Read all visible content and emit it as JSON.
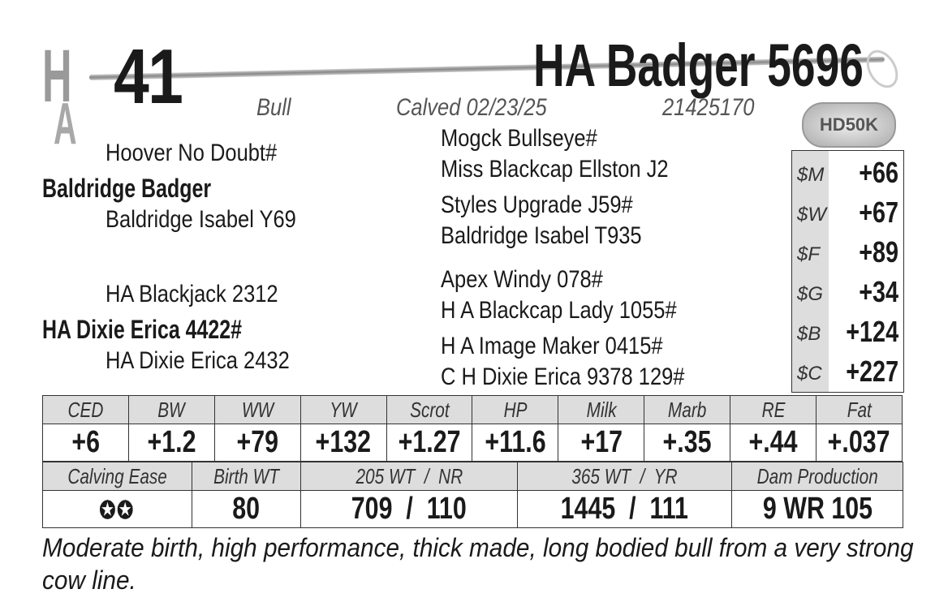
{
  "header": {
    "logo_text": "HA",
    "lot_number": "41",
    "animal_name": "HA Badger 5696",
    "sex": "Bull",
    "calved": "Calved 02/23/25",
    "registration": "21425170",
    "badge": "HD50K"
  },
  "pedigree": {
    "sire": "Baldridge Badger",
    "sire_sire": "Hoover No Doubt#",
    "sire_dam": "Baldridge Isabel Y69",
    "dam": "HA Dixie Erica 4422#",
    "dam_sire": "HA Blackjack 2312",
    "dam_dam": "HA Dixie Erica 2432",
    "great": [
      "Mogck Bullseye#",
      "Miss Blackcap Ellston J2",
      "Styles Upgrade J59#",
      "Baldridge Isabel T935",
      "Apex Windy 078#",
      "H A Blackcap Lady 1055#",
      "H A Image Maker 0415#",
      "C H Dixie Erica 9378 129#"
    ]
  },
  "indexes": [
    {
      "label": "$M",
      "value": "+66"
    },
    {
      "label": "$W",
      "value": "+67"
    },
    {
      "label": "$F",
      "value": "+89"
    },
    {
      "label": "$G",
      "value": "+34"
    },
    {
      "label": "$B",
      "value": "+124"
    },
    {
      "label": "$C",
      "value": "+227"
    }
  ],
  "epds": {
    "headers": [
      "CED",
      "BW",
      "WW",
      "YW",
      "Scrot",
      "HP",
      "Milk",
      "Marb",
      "RE",
      "Fat"
    ],
    "values": [
      "+6",
      "+1.2",
      "+79",
      "+132",
      "+1.27",
      "+11.6",
      "+17",
      "+.35",
      "+.44",
      "+.037"
    ]
  },
  "performance": {
    "headers": [
      "Calving Ease",
      "Birth WT",
      "205 WT  /  NR",
      "365 WT  /  YR",
      "Dam Production"
    ],
    "calving_ease_stars": "✪✪",
    "calving_ease_rating": 2,
    "values": [
      "80",
      "709  /  110",
      "1445  /  111",
      "9 WR 105"
    ]
  },
  "remarks": "Moderate birth, high performance, thick made, long bodied bull from a very strong cow line."
}
